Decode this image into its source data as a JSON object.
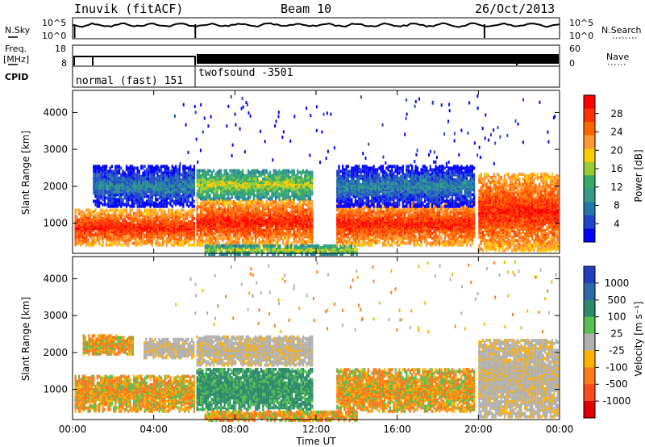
{
  "header": {
    "station": "Inuvik (fitACF)",
    "beam": "Beam 10",
    "date": "26/Oct/2013"
  },
  "top_panels": {
    "nsky_label": "N.Sky",
    "nsky_ticks": [
      "10^5",
      "10^0"
    ],
    "nsearch_label": "N.Search",
    "nsearch_ticks": [
      "10^5",
      "10^0"
    ],
    "freq_label": "Freq.",
    "freq_unit": "[MHz]",
    "freq_ticks": [
      "18",
      "8"
    ],
    "nave_label": "Nave",
    "nave_ticks": [
      "60",
      "0"
    ],
    "cpid_label": "CPID",
    "cpid_modes": [
      {
        "name": "normal (fast) 151",
        "start_hour": 0,
        "end_hour": 6
      },
      {
        "name": "twofsound -3501",
        "start_hour": 6,
        "end_hour": 24
      }
    ]
  },
  "x_axis": {
    "label": "Time UT",
    "ticks": [
      "00:00",
      "04:00",
      "08:00",
      "12:00",
      "16:00",
      "20:00",
      "00:00"
    ],
    "tick_hours": [
      0,
      4,
      8,
      12,
      16,
      20,
      24
    ]
  },
  "chart_data": [
    {
      "type": "heatmap",
      "title": "Power",
      "ylabel": "Slant Range [km]",
      "xlabel": "",
      "xlim_hours": [
        0,
        24
      ],
      "ylim": [
        180,
        4600
      ],
      "yticks": [
        1000,
        2000,
        3000,
        4000
      ],
      "colorbar": {
        "label": "Power [dB]",
        "ticks": [
          "28",
          "24",
          "20",
          "16",
          "12",
          "8",
          "4"
        ],
        "colors": [
          "#ff0000",
          "#ff3300",
          "#ff6600",
          "#ff9933",
          "#ffcc00",
          "#99cc33",
          "#33aa66",
          "#339988",
          "#2277aa",
          "#2244cc",
          "#0000ff"
        ]
      },
      "echo_regions": [
        {
          "t0": 0.1,
          "t1": 6.0,
          "r0": 450,
          "r1": 1400,
          "level": "high"
        },
        {
          "t0": 1.0,
          "t1": 6.0,
          "r0": 1500,
          "r1": 2600,
          "level": "low"
        },
        {
          "t0": 6.1,
          "t1": 11.8,
          "r0": 450,
          "r1": 1700,
          "level": "high"
        },
        {
          "t0": 6.1,
          "t1": 11.8,
          "r0": 1700,
          "r1": 2500,
          "level": "mid"
        },
        {
          "t0": 6.5,
          "t1": 14.0,
          "r0": 200,
          "r1": 450,
          "level": "mid"
        },
        {
          "t0": 13.0,
          "t1": 19.8,
          "r0": 450,
          "r1": 1600,
          "level": "high"
        },
        {
          "t0": 13.0,
          "t1": 19.8,
          "r0": 1500,
          "r1": 2600,
          "level": "low"
        },
        {
          "t0": 20.0,
          "t1": 23.9,
          "r0": 300,
          "r1": 2400,
          "level": "high"
        }
      ]
    },
    {
      "type": "heatmap",
      "title": "Velocity",
      "ylabel": "Slant Range [km]",
      "xlabel": "Time UT",
      "xlim_hours": [
        0,
        24
      ],
      "ylim": [
        180,
        4600
      ],
      "yticks": [
        1000,
        2000,
        3000,
        4000
      ],
      "colorbar": {
        "label": "Velocity [m s⁻¹]",
        "ticks": [
          "1000",
          "500",
          "100",
          "25",
          "-25",
          "-100",
          "-500",
          "-1000"
        ],
        "colors": [
          "#1f3fbf",
          "#2a6aa8",
          "#2c8a6a",
          "#55c050",
          "#b0b0b0",
          "#ffb000",
          "#ff7a1a",
          "#ff4a1a",
          "#e00000"
        ]
      },
      "echo_regions": [
        {
          "t0": 0.1,
          "t1": 6.0,
          "r0": 450,
          "r1": 1400,
          "level": "negative"
        },
        {
          "t0": 0.5,
          "t1": 3.0,
          "r0": 2000,
          "r1": 2500,
          "level": "negative"
        },
        {
          "t0": 3.5,
          "t1": 6.0,
          "r0": 1900,
          "r1": 2400,
          "level": "near-zero"
        },
        {
          "t0": 6.1,
          "t1": 11.8,
          "r0": 500,
          "r1": 1600,
          "level": "positive"
        },
        {
          "t0": 6.1,
          "t1": 11.8,
          "r0": 1700,
          "r1": 2500,
          "level": "near-zero"
        },
        {
          "t0": 6.5,
          "t1": 14.0,
          "r0": 200,
          "r1": 450,
          "level": "negative"
        },
        {
          "t0": 13.0,
          "t1": 19.8,
          "r0": 450,
          "r1": 1600,
          "level": "negative"
        },
        {
          "t0": 20.0,
          "t1": 23.9,
          "r0": 300,
          "r1": 2400,
          "level": "near-zero"
        }
      ]
    }
  ]
}
